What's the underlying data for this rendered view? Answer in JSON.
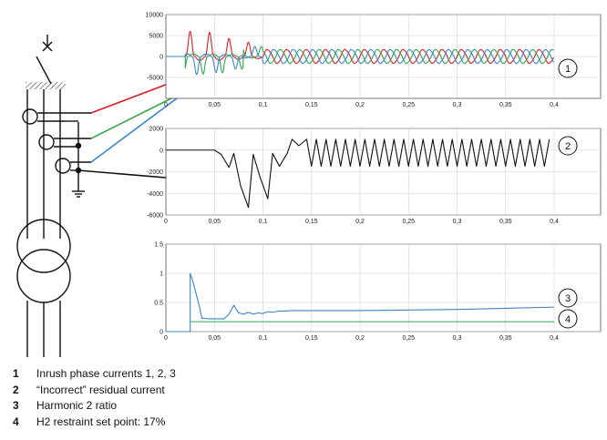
{
  "colors": {
    "phase1": "#d81f26",
    "phase2": "#2fa84f",
    "phase3": "#3a86c8",
    "residual": "#111111",
    "h2_ratio": "#3a86c8",
    "setpoint": "#2fa84f",
    "grid": "#d0d0d0",
    "axis": "#555555"
  },
  "callouts": [
    "1",
    "2",
    "3",
    "4"
  ],
  "legend": [
    {
      "num": "1",
      "text": "Inrush phase currents 1, 2, 3"
    },
    {
      "num": "2",
      "text": "“Incorrect” residual current"
    },
    {
      "num": "3",
      "text": "Harmonic 2 ratio"
    },
    {
      "num": "4",
      "text": "H2 restraint set point: 17%"
    }
  ],
  "chart_data": [
    {
      "type": "line",
      "xlim": [
        0,
        0.4
      ],
      "ylim": [
        -10000,
        10000
      ],
      "x_ticks": [
        "0",
        "0,05",
        "0,1",
        "0,15",
        "0,2",
        "0,25",
        "0,3",
        "0,35",
        "0,4"
      ],
      "y_ticks": [
        "10000",
        "5000",
        "0",
        "-5000"
      ],
      "grid": true,
      "callout": "1",
      "series": [
        {
          "color": "#d81f26",
          "energized_at": 0.02,
          "first_peaks": [
            6000,
            5800,
            4300,
            3400
          ],
          "steady_peak": 1800,
          "period": 0.02,
          "phase_shift_deg": 0
        },
        {
          "color": "#2fa84f",
          "energized_at": 0.02,
          "first_peaks": [
            -4200,
            -3900,
            -3000,
            2400
          ],
          "steady_peak": 1800,
          "period": 0.02,
          "phase_shift_deg": 120
        },
        {
          "color": "#3a86c8",
          "energized_at": 0.02,
          "first_peaks": [
            -4300,
            -3800,
            -3000,
            2400
          ],
          "steady_peak": 1800,
          "period": 0.02,
          "phase_shift_deg": 240
        }
      ]
    },
    {
      "type": "line",
      "xlim": [
        0,
        0.4
      ],
      "ylim": [
        -6000,
        2000
      ],
      "x_ticks": [
        "0",
        "0,05",
        "0,1",
        "0,15",
        "0,2",
        "0,25",
        "0,3",
        "0,35",
        "0,4"
      ],
      "y_ticks": [
        "2000",
        "0",
        "-2000",
        "-4000",
        "-6000"
      ],
      "grid": true,
      "callout": "2",
      "series": [
        {
          "color": "#111111",
          "x": [
            0,
            0.05,
            0.057,
            0.065,
            0.07,
            0.077,
            0.085,
            0.09,
            0.097,
            0.105,
            0.11,
            0.117,
            0.125,
            0.13,
            0.137,
            0.145
          ],
          "y": [
            0,
            0,
            -400,
            -1600,
            -300,
            -3300,
            -5300,
            -400,
            -2500,
            -4500,
            -300,
            -1500,
            -300,
            1000,
            400,
            1000
          ],
          "steady_peak": 1000,
          "steady_trough": -1500,
          "period": 0.01,
          "end_x": 0.4
        }
      ]
    },
    {
      "type": "line",
      "xlim": [
        0,
        0.4
      ],
      "ylim": [
        0,
        1.5
      ],
      "x_ticks": [
        "0",
        "0,05",
        "0,1",
        "0,15",
        "0,2",
        "0,25",
        "0,3",
        "0,35",
        "0,4"
      ],
      "y_ticks": [
        "1.5",
        "1",
        "0.5",
        "0"
      ],
      "grid": true,
      "series": [
        {
          "color": "#3a86c8",
          "callout": "3",
          "x": [
            0,
            0.025,
            0.025,
            0.028,
            0.035,
            0.037,
            0.045,
            0.06,
            0.065,
            0.07,
            0.075,
            0.08,
            0.085,
            0.09,
            0.095,
            0.1,
            0.105,
            0.11,
            0.115,
            0.12,
            0.13,
            0.15,
            0.2,
            0.25,
            0.3,
            0.35,
            0.4
          ],
          "y": [
            0,
            0,
            1.0,
            0.85,
            0.4,
            0.23,
            0.22,
            0.22,
            0.3,
            0.45,
            0.32,
            0.3,
            0.33,
            0.3,
            0.32,
            0.31,
            0.34,
            0.33,
            0.35,
            0.35,
            0.36,
            0.36,
            0.36,
            0.37,
            0.38,
            0.4,
            0.42
          ]
        },
        {
          "color": "#2fa84f",
          "callout": "4",
          "x": [
            0.025,
            0.4
          ],
          "y": [
            0.17,
            0.17
          ]
        }
      ]
    }
  ]
}
